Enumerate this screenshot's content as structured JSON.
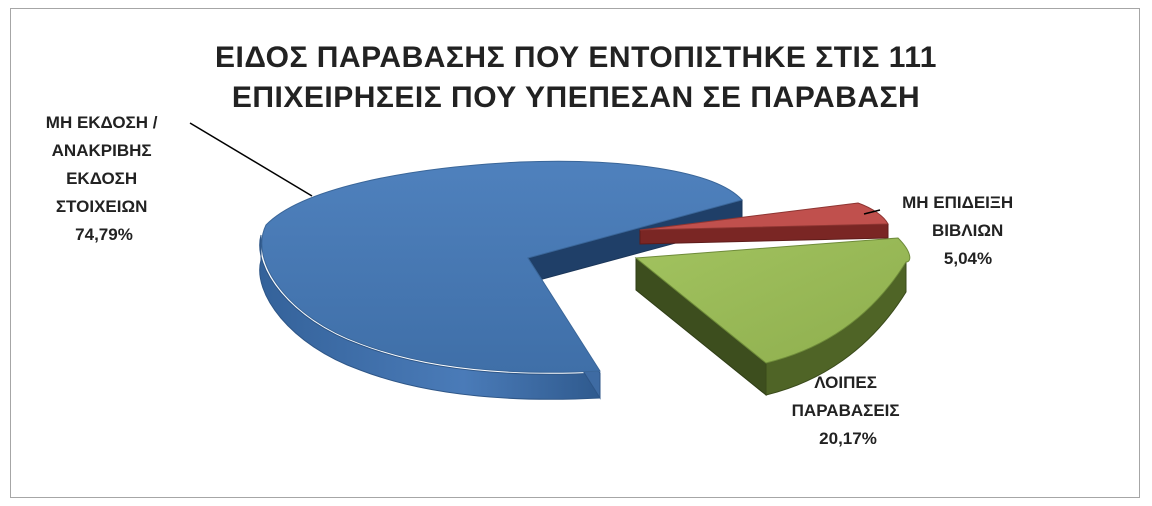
{
  "chart_data": {
    "type": "pie",
    "title_lines": [
      "ΕΙΔΟΣ ΠΑΡΑΒΑΣΗΣ ΠΟΥ ΕΝΤΟΠΙΣΤΗΚΕ ΣΤΙΣ 111",
      "ΕΠΙΧΕΙΡΗΣΕΙΣ ΠΟΥ ΥΠΕΠΕΣΑΝ ΣΕ ΠΑΡΑΒΑΣΗ"
    ],
    "slices": [
      {
        "label_lines": [
          "ΜΗ ΕΚΔΟΣΗ /",
          "ΑΝΑΚΡΙΒΗΣ",
          "ΕΚΔΟΣΗ",
          "ΣΤΟΙΧΕΙΩΝ"
        ],
        "value_label": "74,79%",
        "value": 74.79,
        "color": "#4f81bd"
      },
      {
        "label_lines": [
          "ΜΗ ΕΠΙΔΕΙΞΗ",
          "ΒΙΒΛΙΩΝ"
        ],
        "value_label": "5,04%",
        "value": 5.04,
        "color": "#c0504d"
      },
      {
        "label_lines": [
          "ΛΟΙΠΕΣ",
          "ΠΑΡΑΒΑΣΕΙΣ"
        ],
        "value_label": "20,17%",
        "value": 20.17,
        "color": "#9bbb59"
      }
    ]
  }
}
